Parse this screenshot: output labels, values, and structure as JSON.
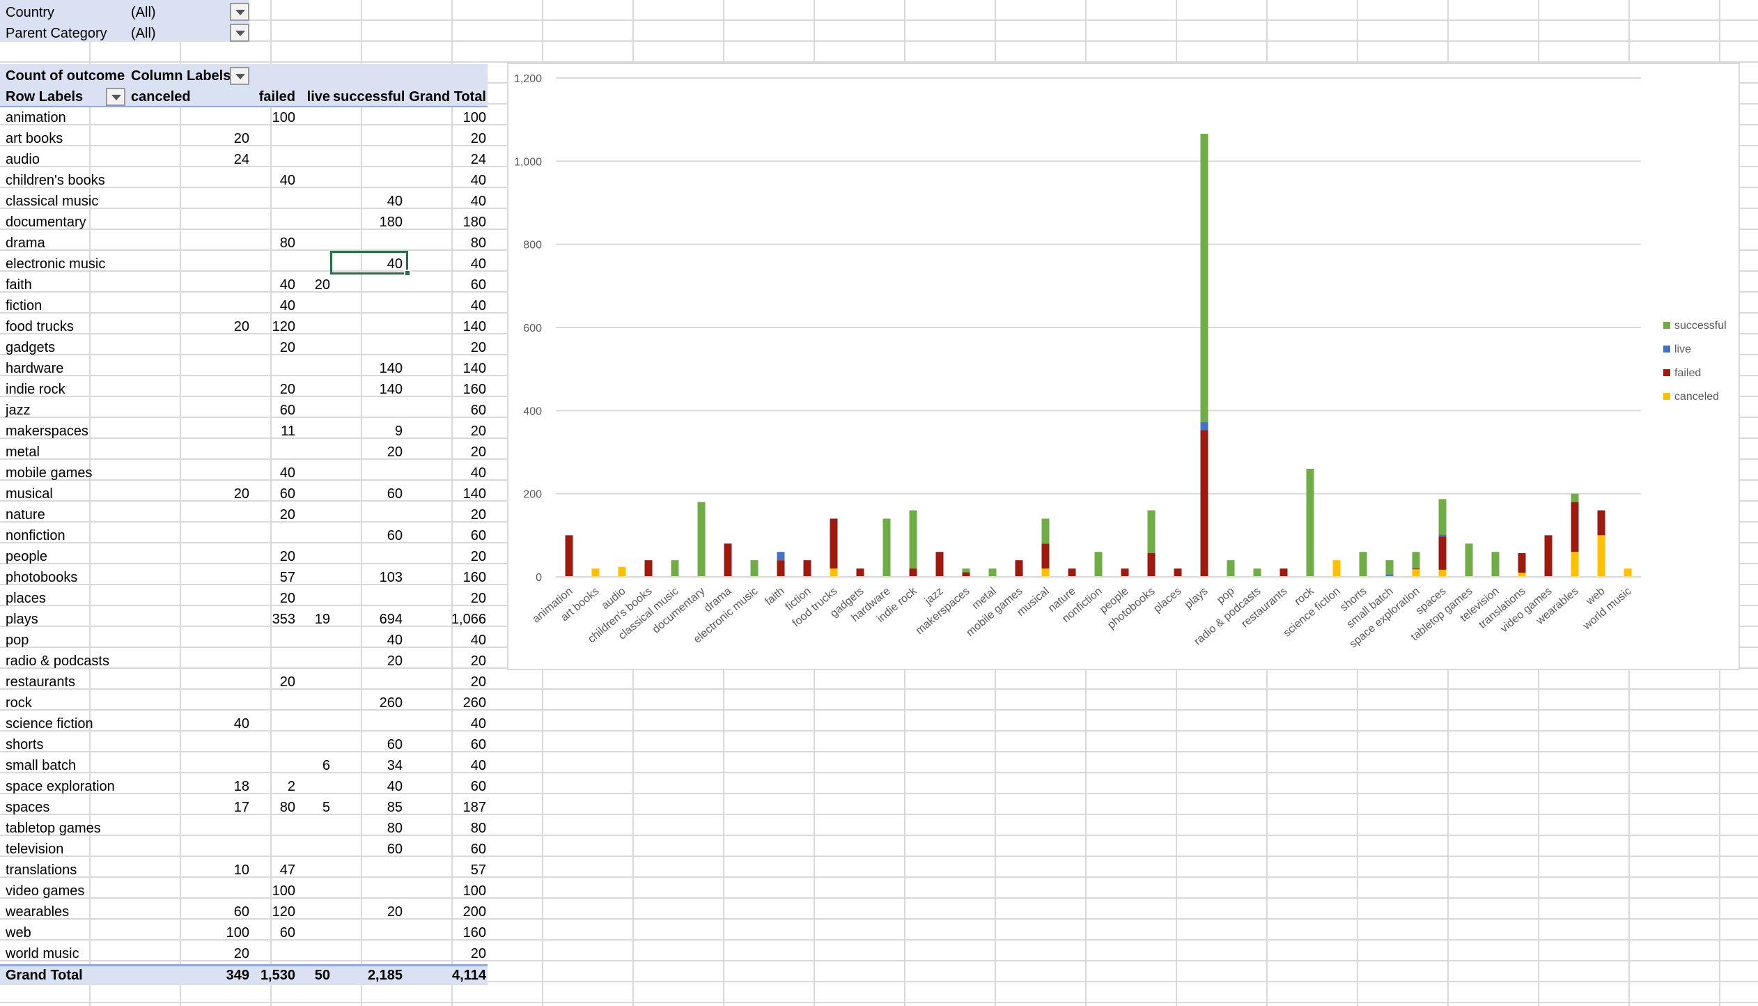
{
  "filters": [
    {
      "label": "Country",
      "value": "(All)"
    },
    {
      "label": "Parent Category",
      "value": "(All)"
    }
  ],
  "pivot": {
    "corner": "Count of outcome",
    "column_labels": "Column Labels",
    "row_labels": "Row Labels",
    "columns": [
      "canceled",
      "failed",
      "live",
      "successful",
      "Grand Total"
    ],
    "rows": [
      {
        "label": "animation",
        "values": [
          "",
          "100",
          "",
          "",
          "100"
        ]
      },
      {
        "label": "art books",
        "values": [
          "20",
          "",
          "",
          "",
          "20"
        ]
      },
      {
        "label": "audio",
        "values": [
          "24",
          "",
          "",
          "",
          "24"
        ]
      },
      {
        "label": "children's books",
        "values": [
          "",
          "40",
          "",
          "",
          "40"
        ]
      },
      {
        "label": "classical music",
        "values": [
          "",
          "",
          "",
          "40",
          "40"
        ]
      },
      {
        "label": "documentary",
        "values": [
          "",
          "",
          "",
          "180",
          "180"
        ]
      },
      {
        "label": "drama",
        "values": [
          "",
          "80",
          "",
          "",
          "80"
        ]
      },
      {
        "label": "electronic music",
        "values": [
          "",
          "",
          "",
          "40",
          "40"
        ]
      },
      {
        "label": "faith",
        "values": [
          "",
          "40",
          "20",
          "",
          "60"
        ]
      },
      {
        "label": "fiction",
        "values": [
          "",
          "40",
          "",
          "",
          "40"
        ]
      },
      {
        "label": "food trucks",
        "values": [
          "20",
          "120",
          "",
          "",
          "140"
        ]
      },
      {
        "label": "gadgets",
        "values": [
          "",
          "20",
          "",
          "",
          "20"
        ]
      },
      {
        "label": "hardware",
        "values": [
          "",
          "",
          "",
          "140",
          "140"
        ]
      },
      {
        "label": "indie rock",
        "values": [
          "",
          "20",
          "",
          "140",
          "160"
        ]
      },
      {
        "label": "jazz",
        "values": [
          "",
          "60",
          "",
          "",
          "60"
        ]
      },
      {
        "label": "makerspaces",
        "values": [
          "",
          "11",
          "",
          "9",
          "20"
        ]
      },
      {
        "label": "metal",
        "values": [
          "",
          "",
          "",
          "20",
          "20"
        ]
      },
      {
        "label": "mobile games",
        "values": [
          "",
          "40",
          "",
          "",
          "40"
        ]
      },
      {
        "label": "musical",
        "values": [
          "20",
          "60",
          "",
          "60",
          "140"
        ]
      },
      {
        "label": "nature",
        "values": [
          "",
          "20",
          "",
          "",
          "20"
        ]
      },
      {
        "label": "nonfiction",
        "values": [
          "",
          "",
          "",
          "60",
          "60"
        ]
      },
      {
        "label": "people",
        "values": [
          "",
          "20",
          "",
          "",
          "20"
        ]
      },
      {
        "label": "photobooks",
        "values": [
          "",
          "57",
          "",
          "103",
          "160"
        ]
      },
      {
        "label": "places",
        "values": [
          "",
          "20",
          "",
          "",
          "20"
        ]
      },
      {
        "label": "plays",
        "values": [
          "",
          "353",
          "19",
          "694",
          "1,066"
        ]
      },
      {
        "label": "pop",
        "values": [
          "",
          "",
          "",
          "40",
          "40"
        ]
      },
      {
        "label": "radio & podcasts",
        "values": [
          "",
          "",
          "",
          "20",
          "20"
        ]
      },
      {
        "label": "restaurants",
        "values": [
          "",
          "20",
          "",
          "",
          "20"
        ]
      },
      {
        "label": "rock",
        "values": [
          "",
          "",
          "",
          "260",
          "260"
        ]
      },
      {
        "label": "science fiction",
        "values": [
          "40",
          "",
          "",
          "",
          "40"
        ]
      },
      {
        "label": "shorts",
        "values": [
          "",
          "",
          "",
          "60",
          "60"
        ]
      },
      {
        "label": "small batch",
        "values": [
          "",
          "",
          "6",
          "34",
          "40"
        ]
      },
      {
        "label": "space exploration",
        "values": [
          "18",
          "2",
          "",
          "40",
          "60"
        ]
      },
      {
        "label": "spaces",
        "values": [
          "17",
          "80",
          "5",
          "85",
          "187"
        ]
      },
      {
        "label": "tabletop games",
        "values": [
          "",
          "",
          "",
          "80",
          "80"
        ]
      },
      {
        "label": "television",
        "values": [
          "",
          "",
          "",
          "60",
          "60"
        ]
      },
      {
        "label": "translations",
        "values": [
          "10",
          "47",
          "",
          "",
          "57"
        ]
      },
      {
        "label": "video games",
        "values": [
          "",
          "100",
          "",
          "",
          "100"
        ]
      },
      {
        "label": "wearables",
        "values": [
          "60",
          "120",
          "",
          "20",
          "200"
        ]
      },
      {
        "label": "web",
        "values": [
          "100",
          "60",
          "",
          "",
          "160"
        ]
      },
      {
        "label": "world music",
        "values": [
          "20",
          "",
          "",
          "",
          "20"
        ]
      }
    ],
    "grand_total": {
      "label": "Grand Total",
      "values": [
        "349",
        "1,530",
        "50",
        "2,185",
        "4,114"
      ]
    }
  },
  "colors": {
    "canceled": "#FFC000",
    "failed": "#9E1A0E",
    "live": "#4472C4",
    "successful": "#70AD47",
    "pivot_header": "#D9E1F2",
    "selection": "#217346"
  },
  "chart_data": {
    "type": "bar",
    "stacked": true,
    "categories": [
      "animation",
      "art books",
      "audio",
      "children's books",
      "classical music",
      "documentary",
      "drama",
      "electronic music",
      "faith",
      "fiction",
      "food trucks",
      "gadgets",
      "hardware",
      "indie rock",
      "jazz",
      "makerspaces",
      "metal",
      "mobile games",
      "musical",
      "nature",
      "nonfiction",
      "people",
      "photobooks",
      "places",
      "plays",
      "pop",
      "radio & podcasts",
      "restaurants",
      "rock",
      "science fiction",
      "shorts",
      "small batch",
      "space exploration",
      "spaces",
      "tabletop games",
      "television",
      "translations",
      "video games",
      "wearables",
      "web",
      "world music"
    ],
    "series": [
      {
        "name": "canceled",
        "values": [
          0,
          20,
          24,
          0,
          0,
          0,
          0,
          0,
          0,
          0,
          20,
          0,
          0,
          0,
          0,
          0,
          0,
          0,
          20,
          0,
          0,
          0,
          0,
          0,
          0,
          0,
          0,
          0,
          0,
          40,
          0,
          0,
          18,
          17,
          0,
          0,
          10,
          0,
          60,
          100,
          20
        ]
      },
      {
        "name": "failed",
        "values": [
          100,
          0,
          0,
          40,
          0,
          0,
          80,
          0,
          40,
          40,
          120,
          20,
          0,
          20,
          60,
          11,
          0,
          40,
          60,
          20,
          0,
          20,
          57,
          20,
          353,
          0,
          0,
          20,
          0,
          0,
          0,
          0,
          2,
          80,
          0,
          0,
          47,
          100,
          120,
          60,
          0
        ]
      },
      {
        "name": "live",
        "values": [
          0,
          0,
          0,
          0,
          0,
          0,
          0,
          0,
          20,
          0,
          0,
          0,
          0,
          0,
          0,
          0,
          0,
          0,
          0,
          0,
          0,
          0,
          0,
          0,
          19,
          0,
          0,
          0,
          0,
          0,
          0,
          6,
          0,
          5,
          0,
          0,
          0,
          0,
          0,
          0,
          0
        ]
      },
      {
        "name": "successful",
        "values": [
          0,
          0,
          0,
          0,
          40,
          180,
          0,
          40,
          0,
          0,
          0,
          0,
          140,
          140,
          0,
          9,
          20,
          0,
          60,
          0,
          60,
          0,
          103,
          0,
          694,
          40,
          20,
          0,
          260,
          0,
          60,
          34,
          40,
          85,
          80,
          60,
          0,
          0,
          20,
          0,
          0
        ]
      }
    ],
    "legend": [
      "successful",
      "live",
      "failed",
      "canceled"
    ],
    "legend_position": "right",
    "ylim": [
      0,
      1200
    ],
    "yticks": [
      "0",
      "200",
      "400",
      "600",
      "800",
      "1,000",
      "1,200"
    ],
    "grid": true
  }
}
